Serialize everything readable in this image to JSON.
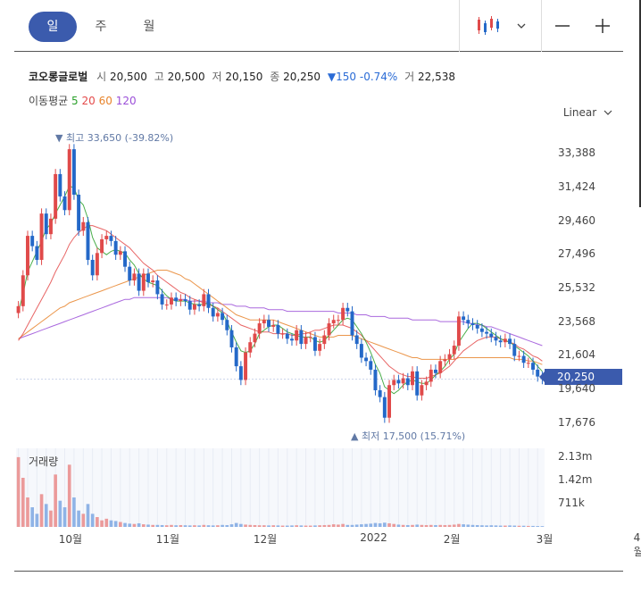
{
  "tabs": [
    "일",
    "주",
    "월"
  ],
  "stock": {
    "name": "코오롱글로벌",
    "open_label": "시",
    "open": "20,500",
    "high_label": "고",
    "high": "20,500",
    "low_label": "저",
    "low": "20,150",
    "close_label": "종",
    "close": "20,250",
    "change": "▼150",
    "change_pct": "-0.74%",
    "volume_label": "거",
    "volume": "22,538"
  },
  "ma": {
    "label": "이동평균",
    "p5": "5",
    "p20": "20",
    "p60": "60",
    "p120": "120",
    "colors": {
      "p5": "#2aa02a",
      "p20": "#e44a4a",
      "p60": "#e8842c",
      "p120": "#9b4fd8"
    }
  },
  "scale_label": "Linear",
  "volume_label": "거래량",
  "price_tag": "20,250",
  "annotations": {
    "high": "▼ 최고 33,650 (-39.82%)",
    "low": "▲ 최저 17,500 (15.71%)"
  },
  "colors": {
    "up": "#e04a4a",
    "down": "#2468c8",
    "accent": "#3b5bad"
  },
  "chart_data": {
    "type": "candlestick",
    "y_ticks": [
      "33,388",
      "31,424",
      "29,460",
      "27,496",
      "25,532",
      "23,568",
      "21,604",
      "19,640",
      "17,676"
    ],
    "y_tick_values": [
      33388,
      31424,
      29460,
      27496,
      25532,
      23568,
      21604,
      19640,
      17676
    ],
    "ylim": [
      17100,
      34800
    ],
    "x_ticks": [
      "10월",
      "11월",
      "12월",
      "2022",
      "2월",
      "3월",
      "4월"
    ],
    "x_tick_index": [
      11,
      32,
      53,
      76,
      94,
      114,
      135
    ],
    "vol_ticks": [
      "2.13m",
      "1.42m",
      "711k"
    ],
    "vol_tick_values": [
      2130000,
      1420000,
      711000
    ],
    "close": [
      24500,
      26300,
      28600,
      28000,
      27200,
      29900,
      28700,
      29600,
      32200,
      30900,
      30100,
      33650,
      31000,
      28900,
      29400,
      27200,
      26300,
      27600,
      28400,
      28600,
      28300,
      27500,
      27700,
      26800,
      26000,
      26400,
      25400,
      26400,
      25900,
      26000,
      25200,
      24600,
      24600,
      25000,
      24800,
      24900,
      24800,
      24300,
      24600,
      24500,
      25200,
      24400,
      23900,
      24100,
      23700,
      23100,
      22100,
      21000,
      20200,
      21800,
      22400,
      22900,
      23500,
      23700,
      23300,
      23400,
      22900,
      22900,
      22600,
      22500,
      23100,
      22300,
      22700,
      22700,
      21900,
      22300,
      22800,
      23500,
      23700,
      23700,
      24400,
      24200,
      22800,
      22300,
      21500,
      21300,
      20800,
      19600,
      19200,
      18000,
      19900,
      20200,
      20000,
      20300,
      19900,
      20700,
      19300,
      19900,
      20100,
      20800,
      20600,
      21300,
      21400,
      21700,
      22200,
      23900,
      23700,
      23500,
      23400,
      23200,
      23000,
      22900,
      22700,
      22500,
      22400,
      22600,
      22300,
      21600,
      21600,
      21200,
      21200,
      20800,
      20400,
      20250
    ],
    "ma5": [
      24200,
      25200,
      26500,
      27100,
      27700,
      28300,
      29000,
      29300,
      29900,
      30400,
      30900,
      31500,
      31400,
      30700,
      30400,
      29600,
      28500,
      27900,
      27700,
      27500,
      27700,
      27800,
      27700,
      27600,
      27200,
      26900,
      26400,
      26100,
      25900,
      25800,
      25700,
      25400,
      25100,
      24900,
      24800,
      24800,
      24800,
      24700,
      24600,
      24600,
      24600,
      24700,
      24500,
      24300,
      24100,
      23600,
      23000,
      22400,
      21900,
      21800,
      21900,
      22300,
      22900,
      23100,
      23300,
      23400,
      23400,
      23200,
      23000,
      22900,
      22800,
      22700,
      22700,
      22700,
      22500,
      22400,
      22500,
      22800,
      23100,
      23400,
      23700,
      23800,
      23700,
      23300,
      22900,
      22400,
      21800,
      21100,
      20600,
      19800,
      19600,
      19400,
      19600,
      19900,
      20100,
      20200,
      20100,
      20000,
      20000,
      20200,
      20500,
      20700,
      21000,
      21400,
      21700,
      22400,
      22800,
      23200,
      23500,
      23500,
      23400,
      23200,
      23000,
      22800,
      22600,
      22500,
      22400,
      22200,
      22000,
      21800,
      21600,
      21300,
      21000,
      20700
    ],
    "ma20": [
      22500,
      22900,
      23400,
      23900,
      24400,
      24900,
      25400,
      25900,
      26500,
      27000,
      27500,
      28100,
      28500,
      28800,
      29000,
      29200,
      29200,
      29100,
      29000,
      28900,
      28700,
      28500,
      28300,
      28100,
      27900,
      27600,
      27300,
      27000,
      26800,
      26600,
      26300,
      26100,
      25900,
      25700,
      25500,
      25300,
      25200,
      25000,
      24900,
      24800,
      24700,
      24600,
      24500,
      24400,
      24200,
      24000,
      23800,
      23600,
      23400,
      23300,
      23200,
      23100,
      23000,
      23000,
      23000,
      22900,
      22900,
      22900,
      22900,
      22800,
      22800,
      22900,
      22900,
      23000,
      23100,
      23100,
      23200,
      23300,
      23400,
      23400,
      23400,
      23300,
      23200,
      23000,
      22800,
      22500,
      22200,
      21900,
      21600,
      21300,
      21000,
      20800,
      20600,
      20500,
      20400,
      20400,
      20300,
      20300,
      20300,
      20400,
      20500,
      20600,
      20800,
      21000,
      21300,
      21600,
      21900,
      22100,
      22300,
      22500,
      22600,
      22700,
      22700,
      22700,
      22600,
      22500,
      22400,
      22300,
      22100,
      22000,
      21800,
      21600,
      21500,
      21300
    ],
    "ma60": [
      22600,
      22800,
      23000,
      23200,
      23400,
      23600,
      23800,
      24000,
      24200,
      24400,
      24500,
      24700,
      24800,
      24900,
      25000,
      25100,
      25200,
      25300,
      25400,
      25500,
      25600,
      25700,
      25800,
      25900,
      26000,
      26100,
      26200,
      26300,
      26400,
      26500,
      26600,
      26600,
      26600,
      26500,
      26400,
      26300,
      26100,
      26000,
      25800,
      25600,
      25400,
      25200,
      25000,
      24800,
      24600,
      24400,
      24200,
      24000,
      23900,
      23800,
      23700,
      23700,
      23700,
      23700,
      23700,
      23700,
      23600,
      23500,
      23400,
      23300,
      23200,
      23100,
      23000,
      22900,
      22800,
      22700,
      22700,
      22700,
      22700,
      22800,
      22800,
      22800,
      22800,
      22700,
      22600,
      22500,
      22400,
      22300,
      22200,
      22100,
      22000,
      21900,
      21800,
      21700,
      21600,
      21500,
      21500,
      21400,
      21400,
      21400,
      21400,
      21400,
      21400,
      21400,
      21400,
      21500,
      21500,
      21500,
      21500,
      21500,
      21500,
      21500,
      21500,
      21500,
      21500,
      21500,
      21500,
      21400,
      21400,
      21400,
      21300,
      21300,
      21200,
      21100
    ],
    "ma120": [
      22600,
      22700,
      22800,
      22900,
      23000,
      23100,
      23200,
      23300,
      23400,
      23500,
      23600,
      23700,
      23800,
      23900,
      24000,
      24100,
      24200,
      24300,
      24400,
      24500,
      24600,
      24700,
      24800,
      24900,
      24900,
      25000,
      25000,
      25000,
      25000,
      25000,
      25000,
      25000,
      25000,
      24900,
      24900,
      24900,
      24900,
      24800,
      24800,
      24800,
      24800,
      24700,
      24700,
      24700,
      24600,
      24600,
      24600,
      24500,
      24500,
      24500,
      24400,
      24400,
      24400,
      24400,
      24300,
      24300,
      24300,
      24300,
      24200,
      24200,
      24200,
      24200,
      24200,
      24200,
      24200,
      24200,
      24200,
      24200,
      24200,
      24100,
      24100,
      24100,
      24100,
      24000,
      24000,
      24000,
      23900,
      23900,
      23900,
      23900,
      23800,
      23800,
      23800,
      23800,
      23800,
      23700,
      23700,
      23700,
      23700,
      23700,
      23700,
      23600,
      23600,
      23600,
      23600,
      23600,
      23600,
      23500,
      23500,
      23400,
      23400,
      23300,
      23300,
      23200,
      23100,
      23000,
      22900,
      22800,
      22700,
      22600,
      22500,
      22400,
      22300,
      22200
    ],
    "volume": [
      2130000,
      1500000,
      900000,
      600000,
      400000,
      1000000,
      700000,
      500000,
      1600000,
      800000,
      600000,
      1900000,
      900000,
      500000,
      400000,
      700000,
      400000,
      300000,
      200000,
      250000,
      200000,
      180000,
      150000,
      120000,
      100000,
      90000,
      110000,
      80000,
      70000,
      60000,
      60000,
      55000,
      50000,
      60000,
      50000,
      55000,
      50000,
      45000,
      50000,
      45000,
      60000,
      50000,
      45000,
      50000,
      60000,
      55000,
      80000,
      120000,
      90000,
      70000,
      60000,
      55000,
      50000,
      50000,
      45000,
      50000,
      45000,
      40000,
      40000,
      45000,
      50000,
      45000,
      40000,
      40000,
      45000,
      50000,
      55000,
      60000,
      80000,
      70000,
      90000,
      60000,
      60000,
      70000,
      80000,
      90000,
      100000,
      120000,
      110000,
      130000,
      110000,
      90000,
      70000,
      60000,
      55000,
      60000,
      70000,
      60000,
      55000,
      60000,
      55000,
      60000,
      55000,
      60000,
      70000,
      90000,
      80000,
      70000,
      60000,
      55000,
      50000,
      45000,
      50000,
      45000,
      40000,
      40000,
      45000,
      40000,
      35000,
      35000,
      30000,
      30000,
      25000,
      22538
    ]
  }
}
